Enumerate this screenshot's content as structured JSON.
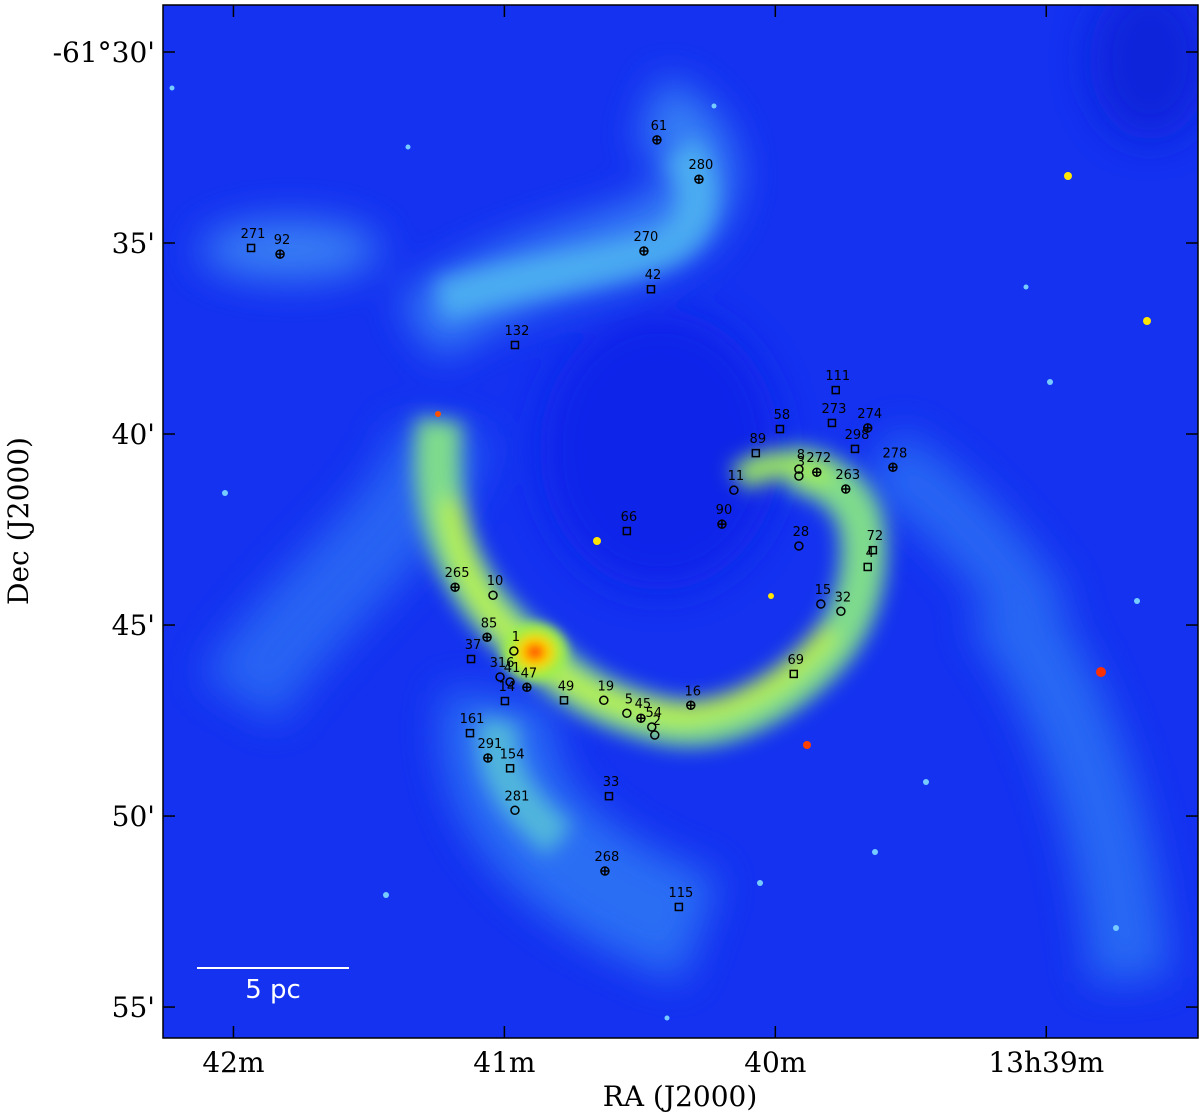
{
  "chart_data": {
    "type": "image-scatter",
    "xlabel": "RA (J2000)",
    "ylabel": "Dec (J2000)",
    "xlim": [
      42.26,
      38.44
    ],
    "ylim": [
      28.77,
      55.81
    ],
    "xticks": [
      {
        "value": 42,
        "label": "42m"
      },
      {
        "value": 41,
        "label": "41m"
      },
      {
        "value": 40,
        "label": "40m"
      },
      {
        "value": 39,
        "label": "13h39m"
      }
    ],
    "yticks": [
      {
        "value": 30,
        "label": "-61°30'"
      },
      {
        "value": 35,
        "label": "35'"
      },
      {
        "value": 40,
        "label": "40'"
      },
      {
        "value": 45,
        "label": "45'"
      },
      {
        "value": 50,
        "label": "50'"
      },
      {
        "value": 55,
        "label": "55'"
      }
    ],
    "scale_bar_label": "5 pc",
    "color": "#000000",
    "series": [
      {
        "marker": "circle-plus",
        "labels": [
          "61",
          "280",
          "92",
          "270",
          "274",
          "272",
          "278",
          "263",
          "90",
          "265",
          "85",
          "47",
          "16",
          "45",
          "291",
          "268"
        ],
        "x": [
          40.437,
          40.282,
          41.828,
          40.485,
          39.659,
          39.847,
          39.566,
          39.74,
          40.197,
          41.182,
          41.064,
          40.917,
          40.312,
          40.496,
          41.061,
          40.629
        ],
        "y": [
          32.3,
          33.33,
          35.29,
          35.21,
          39.84,
          41.0,
          40.87,
          41.44,
          42.36,
          44.01,
          45.32,
          46.63,
          47.1,
          47.44,
          48.48,
          51.44
        ]
      },
      {
        "marker": "square",
        "labels": [
          "271",
          "42",
          "132",
          "111",
          "58",
          "273",
          "298",
          "89",
          "66",
          "72",
          "4",
          "37",
          "14",
          "49",
          "69",
          "161",
          "154",
          "33",
          "115"
        ],
        "x": [
          41.935,
          40.459,
          40.961,
          39.777,
          39.983,
          39.791,
          39.706,
          40.072,
          40.548,
          39.64,
          39.659,
          41.123,
          40.998,
          40.78,
          39.932,
          41.127,
          40.979,
          40.614,
          40.356
        ],
        "y": [
          35.13,
          36.21,
          37.67,
          38.85,
          39.87,
          39.71,
          40.39,
          40.5,
          42.54,
          43.04,
          43.48,
          45.89,
          46.99,
          46.97,
          46.28,
          47.83,
          48.75,
          49.48,
          52.38
        ]
      },
      {
        "marker": "circle",
        "labels": [
          "8",
          "3",
          "11",
          "28",
          "10",
          "15",
          "32",
          "1",
          "316",
          "41",
          "19",
          "5",
          "54",
          "2",
          "281"
        ],
        "x": [
          39.913,
          39.913,
          40.153,
          39.913,
          41.042,
          39.832,
          39.758,
          40.965,
          41.016,
          40.979,
          40.633,
          40.548,
          40.456,
          40.445,
          40.961
        ],
        "y": [
          40.92,
          41.1,
          41.47,
          42.93,
          44.22,
          44.45,
          44.64,
          45.68,
          46.36,
          46.49,
          46.97,
          47.31,
          47.67,
          47.88,
          49.85
        ]
      }
    ]
  }
}
